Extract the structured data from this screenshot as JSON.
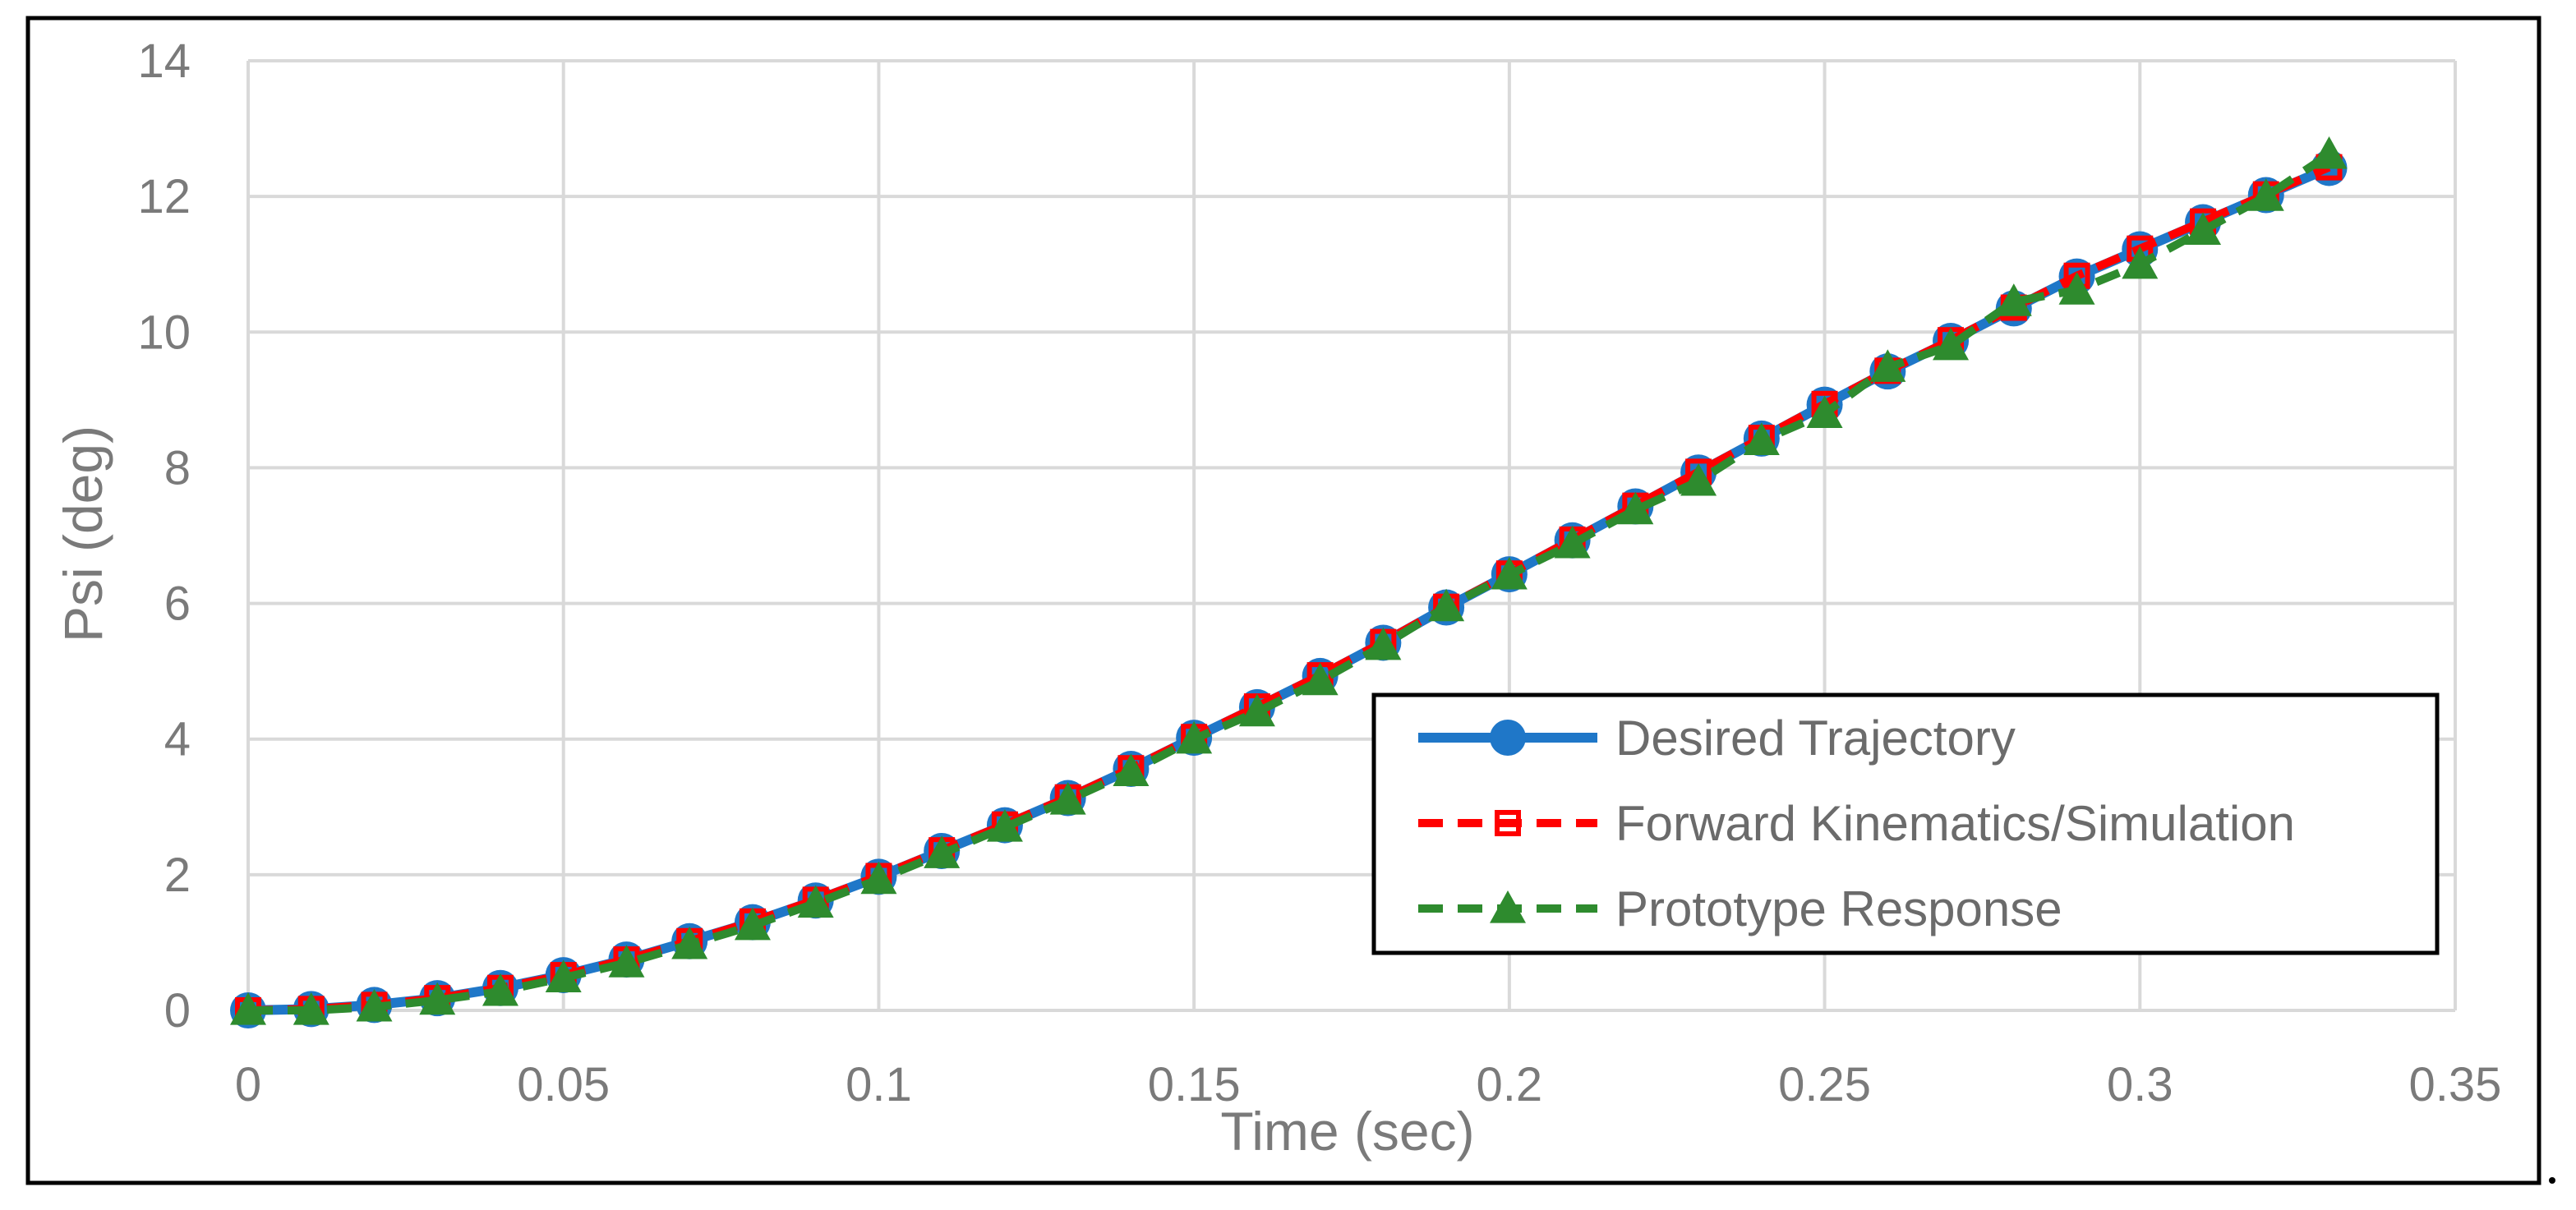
{
  "chart_data": {
    "type": "line",
    "xlabel": "Time (sec)",
    "ylabel": "Psi (deg)",
    "xlim": [
      0,
      0.35
    ],
    "ylim": [
      0,
      14
    ],
    "x_ticks": [
      "0",
      "0.05",
      "0.1",
      "0.15",
      "0.2",
      "0.25",
      "0.3",
      "0.35"
    ],
    "y_ticks": [
      "0",
      "2",
      "4",
      "6",
      "8",
      "10",
      "12",
      "14"
    ],
    "x_tick_values": [
      0,
      0.05,
      0.1,
      0.15,
      0.2,
      0.25,
      0.3,
      0.35
    ],
    "y_tick_values": [
      0,
      2,
      4,
      6,
      8,
      10,
      12,
      14
    ],
    "grid": true,
    "legend_position": "bottom-right",
    "x": [
      0,
      0.01,
      0.02,
      0.03,
      0.04,
      0.05,
      0.06,
      0.07,
      0.08,
      0.09,
      0.1,
      0.11,
      0.12,
      0.13,
      0.14,
      0.15,
      0.16,
      0.17,
      0.18,
      0.19,
      0.2,
      0.21,
      0.22,
      0.23,
      0.24,
      0.25,
      0.26,
      0.27,
      0.28,
      0.29,
      0.3,
      0.31,
      0.32,
      0.33
    ],
    "series": [
      {
        "name": "Desired Trajectory",
        "color": "#1f77c8",
        "style": "solid",
        "marker": "circle",
        "values": [
          0,
          0.02,
          0.08,
          0.18,
          0.33,
          0.52,
          0.75,
          1.02,
          1.3,
          1.62,
          1.97,
          2.35,
          2.73,
          3.13,
          3.56,
          4.02,
          4.47,
          4.93,
          5.42,
          5.94,
          6.43,
          6.93,
          7.43,
          7.93,
          8.43,
          8.93,
          9.42,
          9.87,
          10.35,
          10.82,
          11.22,
          11.62,
          12.02,
          12.42
        ]
      },
      {
        "name": "Forward Kinematics/Simulation",
        "color": "#ff0000",
        "style": "dashed",
        "marker": "square",
        "values": [
          0,
          0.02,
          0.08,
          0.18,
          0.33,
          0.52,
          0.75,
          1.02,
          1.31,
          1.63,
          1.98,
          2.36,
          2.74,
          3.14,
          3.57,
          4.03,
          4.48,
          4.94,
          5.43,
          5.95,
          6.44,
          6.94,
          7.44,
          7.94,
          8.44,
          8.94,
          9.43,
          9.88,
          10.36,
          10.83,
          11.23,
          11.63,
          12.03,
          12.43
        ]
      },
      {
        "name": "Prototype Response",
        "color": "#2e8b2e",
        "style": "dashed",
        "marker": "triangle",
        "values": [
          0,
          0,
          0.05,
          0.15,
          0.28,
          0.48,
          0.7,
          0.97,
          1.25,
          1.58,
          1.93,
          2.31,
          2.7,
          3.1,
          3.52,
          4.0,
          4.4,
          4.86,
          5.38,
          5.95,
          6.42,
          6.88,
          7.38,
          7.8,
          8.4,
          8.8,
          9.48,
          9.8,
          10.45,
          10.62,
          11.0,
          11.5,
          12.0,
          12.62
        ]
      }
    ]
  }
}
